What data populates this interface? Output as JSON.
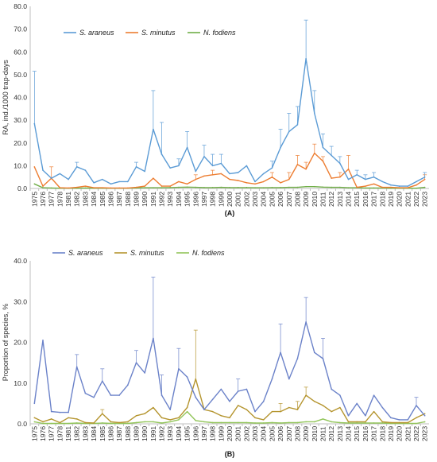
{
  "chart_data": [
    {
      "type": "line",
      "panel_label": "(A)",
      "ylabel": "RA, ind./1000 trap-days",
      "xlabel": "",
      "ylim": [
        0,
        80
      ],
      "yticks": [
        "0.0",
        "10.0",
        "20.0",
        "30.0",
        "40.0",
        "50.0",
        "60.0",
        "70.0",
        "80.0"
      ],
      "grid": false,
      "legend_position": "top-left",
      "x": [
        1975,
        1976,
        1977,
        1978,
        1981,
        1982,
        1983,
        1984,
        1985,
        1986,
        1987,
        1988,
        1989,
        1990,
        1991,
        1992,
        1993,
        1994,
        1995,
        1996,
        1997,
        1998,
        1999,
        2000,
        2001,
        2002,
        2003,
        2004,
        2005,
        2006,
        2007,
        2008,
        2009,
        2010,
        2011,
        2012,
        2013,
        2014,
        2015,
        2016,
        2017,
        2018,
        2019,
        2020,
        2021,
        2022,
        2023
      ],
      "series": [
        {
          "name": "S. araneus",
          "color": "#5b9bd5",
          "values": [
            28.5,
            8,
            4.5,
            6.5,
            4,
            9.5,
            8,
            2.5,
            4,
            2,
            3,
            3,
            9.5,
            7.5,
            26,
            15,
            9,
            10,
            18,
            7.5,
            14,
            10,
            11,
            6.5,
            7,
            10,
            3,
            6.5,
            9,
            18,
            25,
            28,
            57,
            33,
            18,
            14.5,
            11,
            4,
            6,
            4,
            5,
            3,
            1.5,
            1,
            1,
            3,
            5
          ],
          "err": [
            23,
            0,
            0,
            0,
            0,
            2,
            0,
            0,
            0,
            0,
            0,
            0,
            2,
            0,
            17,
            14,
            0,
            3,
            7,
            0,
            5,
            5,
            4,
            0,
            0,
            0,
            0,
            0,
            3,
            8,
            8,
            8,
            17,
            10,
            6,
            4,
            3,
            0,
            2,
            2,
            2,
            0,
            0,
            0,
            0,
            0,
            2
          ]
        },
        {
          "name": "S. minutus",
          "color": "#ed7d31",
          "values": [
            9.5,
            1,
            4.5,
            0.3,
            0.2,
            0.5,
            1,
            0.3,
            0.3,
            0.2,
            0.2,
            0.2,
            0.5,
            1,
            4.5,
            1,
            1,
            3,
            2,
            4,
            5.5,
            6,
            6.5,
            4,
            3.5,
            2.5,
            2,
            3,
            5,
            2.5,
            4,
            10.5,
            8.5,
            15.5,
            12,
            4.5,
            5,
            8.5,
            0.5,
            1,
            2,
            0.5,
            0.5,
            0.3,
            0.3,
            1.5,
            4
          ],
          "err": [
            0,
            0,
            5,
            0,
            0,
            0,
            0,
            0,
            0,
            0,
            0,
            0,
            0,
            0,
            0,
            0,
            0,
            0,
            0,
            2,
            0,
            2,
            0,
            0,
            0,
            0,
            0,
            0,
            2,
            0,
            3,
            4,
            3,
            4,
            2,
            0,
            2,
            6,
            0,
            0,
            0,
            0,
            0,
            0,
            0,
            0,
            2
          ]
        },
        {
          "name": "N. fodiens",
          "color": "#70ad47",
          "values": [
            2,
            0.3,
            0.2,
            0.1,
            0.1,
            0.1,
            0.2,
            0.1,
            0.1,
            0.1,
            0.1,
            0.1,
            0.2,
            0.3,
            0.3,
            0.3,
            0.4,
            0.5,
            0.6,
            0.5,
            0.4,
            0.4,
            0.5,
            0.4,
            0.4,
            0.4,
            0.3,
            0.3,
            0.4,
            0.4,
            0.5,
            0.5,
            0.8,
            0.8,
            0.6,
            0.5,
            0.5,
            0.3,
            0.3,
            0.2,
            0.2,
            0.2,
            0.1,
            0.1,
            0.1,
            0.1,
            0.5
          ],
          "err": [
            0,
            0,
            0,
            0,
            0,
            0,
            0,
            0,
            0,
            0,
            0,
            0,
            0,
            0,
            0,
            0,
            0,
            0,
            0,
            0,
            0,
            0,
            0,
            0,
            0,
            0,
            0,
            0,
            0,
            0,
            0,
            0,
            0,
            0,
            0,
            0,
            0,
            0,
            0,
            0,
            0,
            0,
            0,
            0,
            0,
            0,
            0
          ]
        }
      ]
    },
    {
      "type": "line",
      "panel_label": "(B)",
      "ylabel": "Proportion of species, %",
      "xlabel": "",
      "ylim": [
        0,
        40
      ],
      "yticks": [
        "0.0",
        "10.0",
        "20.0",
        "30.0",
        "40.0"
      ],
      "grid": false,
      "legend_position": "top-left",
      "x": [
        1975,
        1976,
        1977,
        1978,
        1981,
        1982,
        1983,
        1984,
        1985,
        1986,
        1987,
        1988,
        1989,
        1990,
        1991,
        1992,
        1993,
        1994,
        1995,
        1996,
        1997,
        1998,
        1999,
        2000,
        2001,
        2002,
        2003,
        2004,
        2005,
        2006,
        2007,
        2008,
        2009,
        2010,
        2011,
        2012,
        2013,
        2014,
        2015,
        2016,
        2017,
        2018,
        2019,
        2020,
        2021,
        2022,
        2023
      ],
      "series": [
        {
          "name": "S. araneus",
          "color": "#6b82c9",
          "values": [
            5,
            20.5,
            3,
            2.8,
            2.8,
            14,
            7.5,
            6.5,
            10.5,
            7,
            7,
            9.5,
            15,
            12.5,
            21,
            7,
            3.5,
            13.5,
            11.5,
            6.5,
            3.5,
            6,
            8.5,
            5.5,
            8,
            8.5,
            3,
            5.5,
            11,
            17.5,
            11,
            16,
            25,
            17.5,
            16,
            8.5,
            7,
            2,
            5,
            2,
            7,
            4,
            1.5,
            1,
            1,
            4.5,
            2
          ],
          "err": [
            0,
            0,
            0,
            0,
            0,
            3,
            0,
            0,
            3,
            0,
            0,
            0,
            3,
            0,
            15,
            5,
            0,
            5,
            0,
            0,
            0,
            0,
            0,
            0,
            3,
            0,
            0,
            0,
            0,
            7,
            0,
            0,
            6,
            0,
            5,
            0,
            0,
            0,
            0,
            0,
            0,
            0,
            0,
            0,
            0,
            2,
            0
          ]
        },
        {
          "name": "S. minutus",
          "color": "#b5952f",
          "values": [
            1.5,
            0.5,
            1.2,
            0.3,
            1.5,
            1.2,
            0.3,
            0.2,
            2.5,
            0.5,
            0.3,
            0.5,
            2,
            2.5,
            4,
            1.5,
            1,
            1.5,
            4,
            11,
            3.5,
            3,
            2,
            1.5,
            4.5,
            3.5,
            1.5,
            1,
            3,
            3,
            4,
            3.5,
            7,
            5.5,
            4.5,
            3,
            4,
            0.5,
            0.5,
            0.5,
            3,
            0.5,
            0.3,
            0.3,
            0.3,
            1.5,
            2.5
          ],
          "err": [
            0,
            0,
            0,
            0,
            0,
            0,
            0,
            0,
            1,
            0,
            0,
            0,
            0,
            0,
            0,
            0,
            0,
            0,
            0,
            12,
            0,
            0,
            0,
            0,
            0,
            0,
            0,
            0,
            0,
            2,
            0,
            2,
            2,
            0,
            0,
            0,
            0,
            0,
            0,
            0,
            0,
            0,
            0,
            0,
            0,
            0,
            0
          ]
        },
        {
          "name": "N. fodiens",
          "color": "#92c55a",
          "values": [
            0.5,
            0.1,
            0.1,
            0.1,
            0.1,
            0.2,
            0.1,
            0.1,
            0.2,
            0.1,
            0.1,
            0.1,
            0.3,
            0.5,
            0.5,
            0.2,
            0.5,
            1,
            3,
            0.8,
            0.5,
            0.3,
            0.3,
            0.3,
            0.3,
            0.3,
            0.2,
            0.2,
            0.3,
            0.2,
            0.3,
            0.3,
            0.5,
            0.5,
            1.2,
            0.5,
            0.3,
            0.2,
            0.2,
            0.2,
            0.2,
            0.2,
            0.1,
            0.1,
            0.1,
            0.1,
            0.5
          ],
          "err": [
            0,
            0,
            0,
            0,
            0,
            0,
            0,
            0,
            0,
            0,
            0,
            0,
            0,
            0,
            0,
            0,
            0,
            0,
            0,
            0,
            0,
            0,
            0,
            0,
            0,
            0,
            0,
            0,
            0,
            0,
            0,
            0,
            0,
            0,
            0,
            0,
            0,
            0,
            0,
            0,
            0,
            0,
            0,
            0,
            0,
            0,
            0
          ]
        }
      ]
    }
  ]
}
